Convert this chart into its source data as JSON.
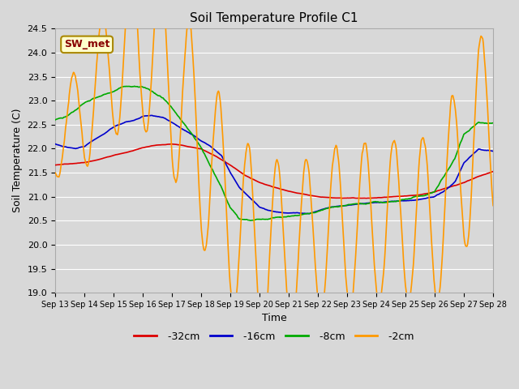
{
  "title": "Soil Temperature Profile C1",
  "xlabel": "Time",
  "ylabel": "Soil Temperature (C)",
  "ylim": [
    19.0,
    24.5
  ],
  "yticks": [
    19.0,
    19.5,
    20.0,
    20.5,
    21.0,
    21.5,
    22.0,
    22.5,
    23.0,
    23.5,
    24.0,
    24.5
  ],
  "bg_color": "#d8d8d8",
  "plot_bg_color": "#d8d8d8",
  "grid_color": "#ffffff",
  "annotation_label": "SW_met",
  "annotation_bg": "#ffffcc",
  "annotation_border": "#aa8800",
  "annotation_text_color": "#880000",
  "series": {
    "-32cm": {
      "color": "#dd0000",
      "linewidth": 1.2
    },
    "-16cm": {
      "color": "#0000cc",
      "linewidth": 1.2
    },
    "-8cm": {
      "color": "#00aa00",
      "linewidth": 1.2
    },
    "-2cm": {
      "color": "#ff9900",
      "linewidth": 1.2
    }
  },
  "x_labels": [
    "Sep 13",
    "Sep 14",
    "Sep 15",
    "Sep 16",
    "Sep 17",
    "Sep 18",
    "Sep 19",
    "Sep 20",
    "Sep 21",
    "Sep 22",
    "Sep 23",
    "Sep 24",
    "Sep 25",
    "Sep 26",
    "Sep 27",
    "Sep 28"
  ],
  "figsize": [
    6.4,
    4.8
  ],
  "dpi": 100,
  "red_xknots": [
    0,
    0.5,
    1,
    1.5,
    2,
    2.5,
    3,
    3.5,
    4,
    4.5,
    5,
    5.5,
    6,
    6.5,
    7,
    7.5,
    8,
    8.5,
    9,
    9.5,
    10,
    10.5,
    11,
    11.5,
    12,
    12.5,
    13,
    13.5,
    14,
    14.5,
    15
  ],
  "red_yknots": [
    21.65,
    21.68,
    21.72,
    21.78,
    21.85,
    21.92,
    22.02,
    22.08,
    22.1,
    22.05,
    22.0,
    21.85,
    21.65,
    21.45,
    21.3,
    21.2,
    21.12,
    21.05,
    21.0,
    20.98,
    20.97,
    20.97,
    20.98,
    21.0,
    21.02,
    21.05,
    21.1,
    21.2,
    21.3,
    21.42,
    21.52
  ],
  "blue_xknots": [
    0,
    0.3,
    0.7,
    1,
    1.3,
    1.7,
    2,
    2.3,
    2.7,
    3,
    3.3,
    3.7,
    4,
    4.3,
    4.7,
    5,
    5.3,
    5.7,
    6,
    6.3,
    6.7,
    7,
    7.3,
    7.7,
    8,
    8.3,
    8.7,
    9,
    9.5,
    10,
    10.5,
    11,
    11.5,
    12,
    12.5,
    13,
    13.3,
    13.7,
    14,
    14.5,
    15
  ],
  "blue_yknots": [
    22.1,
    22.05,
    22.0,
    22.05,
    22.18,
    22.32,
    22.45,
    22.52,
    22.6,
    22.68,
    22.7,
    22.65,
    22.55,
    22.42,
    22.28,
    22.15,
    22.05,
    21.85,
    21.5,
    21.2,
    20.95,
    20.78,
    20.72,
    20.68,
    20.65,
    20.65,
    20.65,
    20.7,
    20.78,
    20.82,
    20.85,
    20.88,
    20.9,
    20.92,
    20.95,
    21.0,
    21.1,
    21.3,
    21.7,
    22.0,
    21.95
  ],
  "green_xknots": [
    0,
    0.3,
    0.7,
    1,
    1.3,
    1.7,
    2,
    2.3,
    2.7,
    3,
    3.3,
    3.7,
    4,
    4.3,
    4.7,
    5,
    5.3,
    5.7,
    6,
    6.3,
    6.7,
    7,
    7.3,
    7.7,
    8,
    8.3,
    8.7,
    9,
    9.5,
    10,
    10.5,
    11,
    11.5,
    12,
    12.5,
    13,
    13.3,
    13.7,
    14,
    14.5,
    15
  ],
  "green_yknots": [
    22.6,
    22.65,
    22.8,
    22.95,
    23.05,
    23.12,
    23.2,
    23.28,
    23.3,
    23.28,
    23.2,
    23.05,
    22.85,
    22.6,
    22.3,
    22.0,
    21.65,
    21.2,
    20.75,
    20.55,
    20.5,
    20.52,
    20.55,
    20.58,
    20.6,
    20.62,
    20.65,
    20.7,
    20.78,
    20.82,
    20.85,
    20.88,
    20.9,
    20.95,
    21.0,
    21.1,
    21.4,
    21.8,
    22.3,
    22.55,
    22.55
  ],
  "orange_base_xknots": [
    0,
    0.5,
    1,
    1.5,
    2,
    2.5,
    3,
    3.5,
    4,
    4.5,
    5,
    5.5,
    6,
    6.5,
    7,
    7.5,
    8,
    8.5,
    9,
    9.5,
    10,
    10.5,
    11,
    11.5,
    12,
    12.5,
    13,
    13.5,
    14,
    14.5,
    15
  ],
  "orange_base_yknots": [
    22.1,
    22.5,
    22.8,
    23.3,
    23.8,
    24.0,
    24.2,
    24.0,
    23.5,
    22.8,
    22.0,
    21.3,
    20.7,
    20.2,
    19.9,
    19.85,
    19.9,
    20.0,
    20.2,
    20.3,
    20.4,
    20.4,
    20.45,
    20.5,
    20.5,
    20.5,
    20.55,
    21.0,
    21.8,
    22.5,
    22.3
  ],
  "orange_amp_xknots": [
    0,
    1,
    2,
    3,
    4,
    5,
    6,
    7,
    8,
    9,
    10,
    11,
    12,
    13,
    14,
    15
  ],
  "orange_amp_yknots": [
    0.7,
    1.2,
    1.5,
    1.8,
    2.0,
    2.0,
    2.0,
    2.0,
    1.8,
    1.7,
    1.7,
    1.7,
    1.7,
    1.8,
    2.0,
    1.8
  ]
}
